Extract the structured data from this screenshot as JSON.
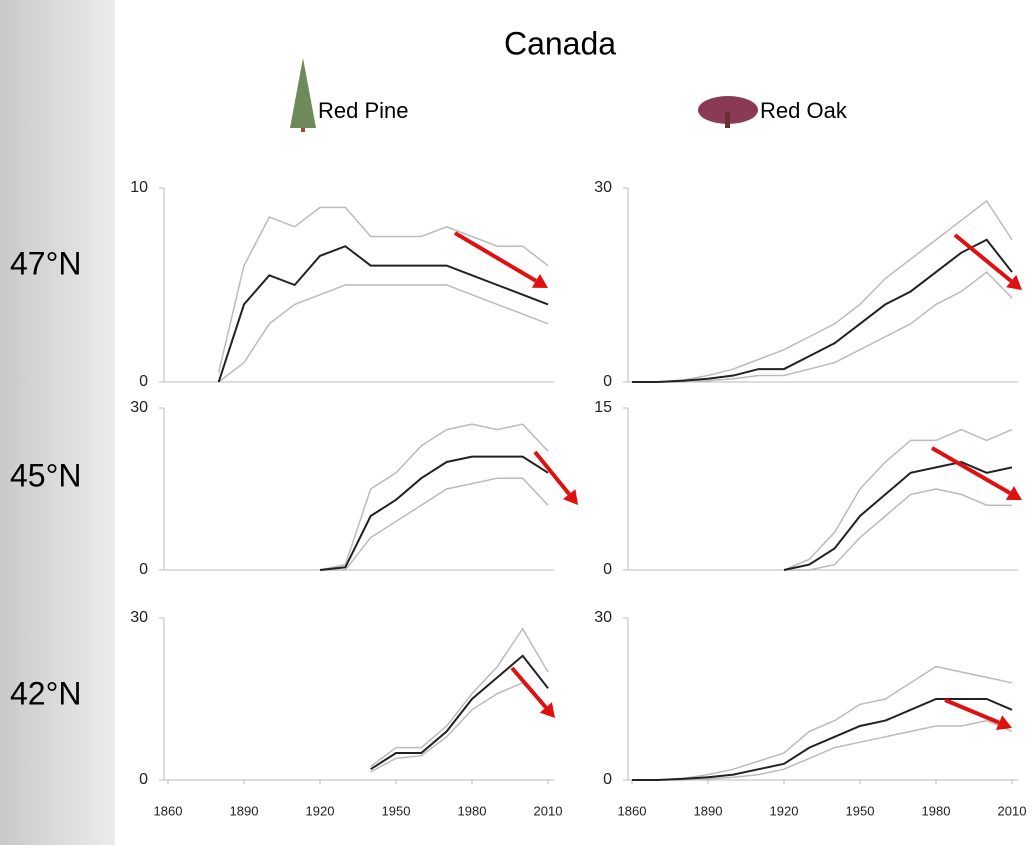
{
  "title": "Canada",
  "columns": [
    "Red Pine",
    "Red Oak"
  ],
  "rows": [
    "47°N",
    "45°N",
    "42°N"
  ],
  "chart_data": [
    {
      "type": "line",
      "x": [
        1860,
        1870,
        1880,
        1890,
        1900,
        1910,
        1920,
        1930,
        1940,
        1950,
        1960,
        1970,
        1980,
        1990,
        2000,
        2010
      ],
      "xlim": [
        1860,
        2010
      ],
      "ylim": [
        0,
        10
      ],
      "yticks": [
        0,
        10
      ],
      "series": [
        {
          "color": "#bbbbbb",
          "values": [
            null,
            null,
            0.5,
            6,
            8.5,
            8,
            9,
            9,
            7.5,
            7.5,
            7.5,
            8,
            7.5,
            7,
            7,
            6
          ]
        },
        {
          "color": "#bbbbbb",
          "values": [
            null,
            null,
            0,
            1,
            3,
            4,
            4.5,
            5,
            5,
            5,
            5,
            5,
            4.5,
            4,
            3.5,
            3
          ]
        },
        {
          "color": "#222222",
          "values": [
            null,
            null,
            0,
            4,
            5.5,
            5,
            6.5,
            7,
            6,
            6,
            6,
            6,
            5.5,
            5,
            4.5,
            4
          ]
        }
      ]
    },
    {
      "type": "line",
      "x": [
        1860,
        1870,
        1880,
        1890,
        1900,
        1910,
        1920,
        1930,
        1940,
        1950,
        1960,
        1970,
        1980,
        1990,
        2000,
        2010
      ],
      "xlim": [
        1860,
        2010
      ],
      "ylim": [
        0,
        30
      ],
      "yticks": [
        0,
        30
      ],
      "series": [
        {
          "color": "#bbbbbb",
          "values": [
            0,
            0,
            0.3,
            1,
            2,
            3.5,
            5,
            7,
            9,
            12,
            16,
            19,
            22,
            25,
            28,
            22
          ]
        },
        {
          "color": "#bbbbbb",
          "values": [
            0,
            0,
            0,
            0.2,
            0.5,
            1,
            1,
            2,
            3,
            5,
            7,
            9,
            12,
            14,
            17,
            13
          ]
        },
        {
          "color": "#222222",
          "values": [
            0,
            0,
            0.2,
            0.5,
            1,
            2,
            2,
            4,
            6,
            9,
            12,
            14,
            17,
            20,
            22,
            17
          ]
        }
      ]
    },
    {
      "type": "line",
      "x": [
        1860,
        1870,
        1880,
        1890,
        1900,
        1910,
        1920,
        1930,
        1940,
        1950,
        1960,
        1970,
        1980,
        1990,
        2000,
        2010
      ],
      "xlim": [
        1860,
        2010
      ],
      "ylim": [
        0,
        30
      ],
      "yticks": [
        0,
        30
      ],
      "series": [
        {
          "color": "#bbbbbb",
          "values": [
            null,
            null,
            null,
            null,
            null,
            null,
            0,
            1,
            15,
            18,
            23,
            26,
            27,
            26,
            27,
            22
          ]
        },
        {
          "color": "#bbbbbb",
          "values": [
            null,
            null,
            null,
            null,
            null,
            null,
            0,
            0,
            6,
            9,
            12,
            15,
            16,
            17,
            17,
            12
          ]
        },
        {
          "color": "#222222",
          "values": [
            null,
            null,
            null,
            null,
            null,
            null,
            0,
            0.5,
            10,
            13,
            17,
            20,
            21,
            21,
            21,
            18
          ]
        }
      ]
    },
    {
      "type": "line",
      "x": [
        1860,
        1870,
        1880,
        1890,
        1900,
        1910,
        1920,
        1930,
        1940,
        1950,
        1960,
        1970,
        1980,
        1990,
        2000,
        2010
      ],
      "xlim": [
        1860,
        2010
      ],
      "ylim": [
        0,
        15
      ],
      "yticks": [
        0,
        15
      ],
      "series": [
        {
          "color": "#bbbbbb",
          "values": [
            null,
            null,
            null,
            null,
            null,
            null,
            0,
            1,
            3.5,
            7.5,
            10,
            12,
            12,
            13,
            12,
            13
          ]
        },
        {
          "color": "#bbbbbb",
          "values": [
            null,
            null,
            null,
            null,
            null,
            null,
            0,
            0,
            0.5,
            3,
            5,
            7,
            7.5,
            7,
            6,
            6
          ]
        },
        {
          "color": "#222222",
          "values": [
            null,
            null,
            null,
            null,
            null,
            null,
            0,
            0.5,
            2,
            5,
            7,
            9,
            9.5,
            10,
            9,
            9.5
          ]
        }
      ]
    },
    {
      "type": "line",
      "x": [
        1860,
        1870,
        1880,
        1890,
        1900,
        1910,
        1920,
        1930,
        1940,
        1950,
        1960,
        1970,
        1980,
        1990,
        2000,
        2010
      ],
      "xlim": [
        1860,
        2010
      ],
      "ylim": [
        0,
        30
      ],
      "yticks": [
        0,
        30
      ],
      "xticks": [
        1860,
        1890,
        1920,
        1950,
        1980,
        2010
      ],
      "series": [
        {
          "color": "#bbbbbb",
          "values": [
            null,
            null,
            null,
            null,
            null,
            null,
            null,
            null,
            2.5,
            6,
            6,
            10,
            16,
            21,
            28,
            20
          ]
        },
        {
          "color": "#bbbbbb",
          "values": [
            null,
            null,
            null,
            null,
            null,
            null,
            null,
            null,
            1.5,
            4,
            4.5,
            8,
            13,
            16,
            18,
            13
          ]
        },
        {
          "color": "#222222",
          "values": [
            null,
            null,
            null,
            null,
            null,
            null,
            null,
            null,
            2,
            5,
            5,
            9,
            15,
            19,
            23,
            17
          ]
        }
      ]
    },
    {
      "type": "line",
      "x": [
        1860,
        1870,
        1880,
        1890,
        1900,
        1910,
        1920,
        1930,
        1940,
        1950,
        1960,
        1970,
        1980,
        1990,
        2000,
        2010
      ],
      "xlim": [
        1860,
        2010
      ],
      "ylim": [
        0,
        30
      ],
      "yticks": [
        0,
        30
      ],
      "xticks": [
        1860,
        1890,
        1920,
        1950,
        1980,
        2010
      ],
      "series": [
        {
          "color": "#bbbbbb",
          "values": [
            0,
            0,
            0.3,
            1,
            2,
            3.5,
            5,
            9,
            11,
            14,
            15,
            18,
            21,
            20,
            19,
            18
          ]
        },
        {
          "color": "#bbbbbb",
          "values": [
            0,
            0,
            0,
            0.2,
            0.5,
            1,
            2,
            4,
            6,
            7,
            8,
            9,
            10,
            10,
            11,
            9
          ]
        },
        {
          "color": "#222222",
          "values": [
            0,
            0,
            0.2,
            0.5,
            1,
            2,
            3,
            6,
            8,
            10,
            11,
            13,
            15,
            15,
            15,
            13
          ]
        }
      ]
    }
  ]
}
